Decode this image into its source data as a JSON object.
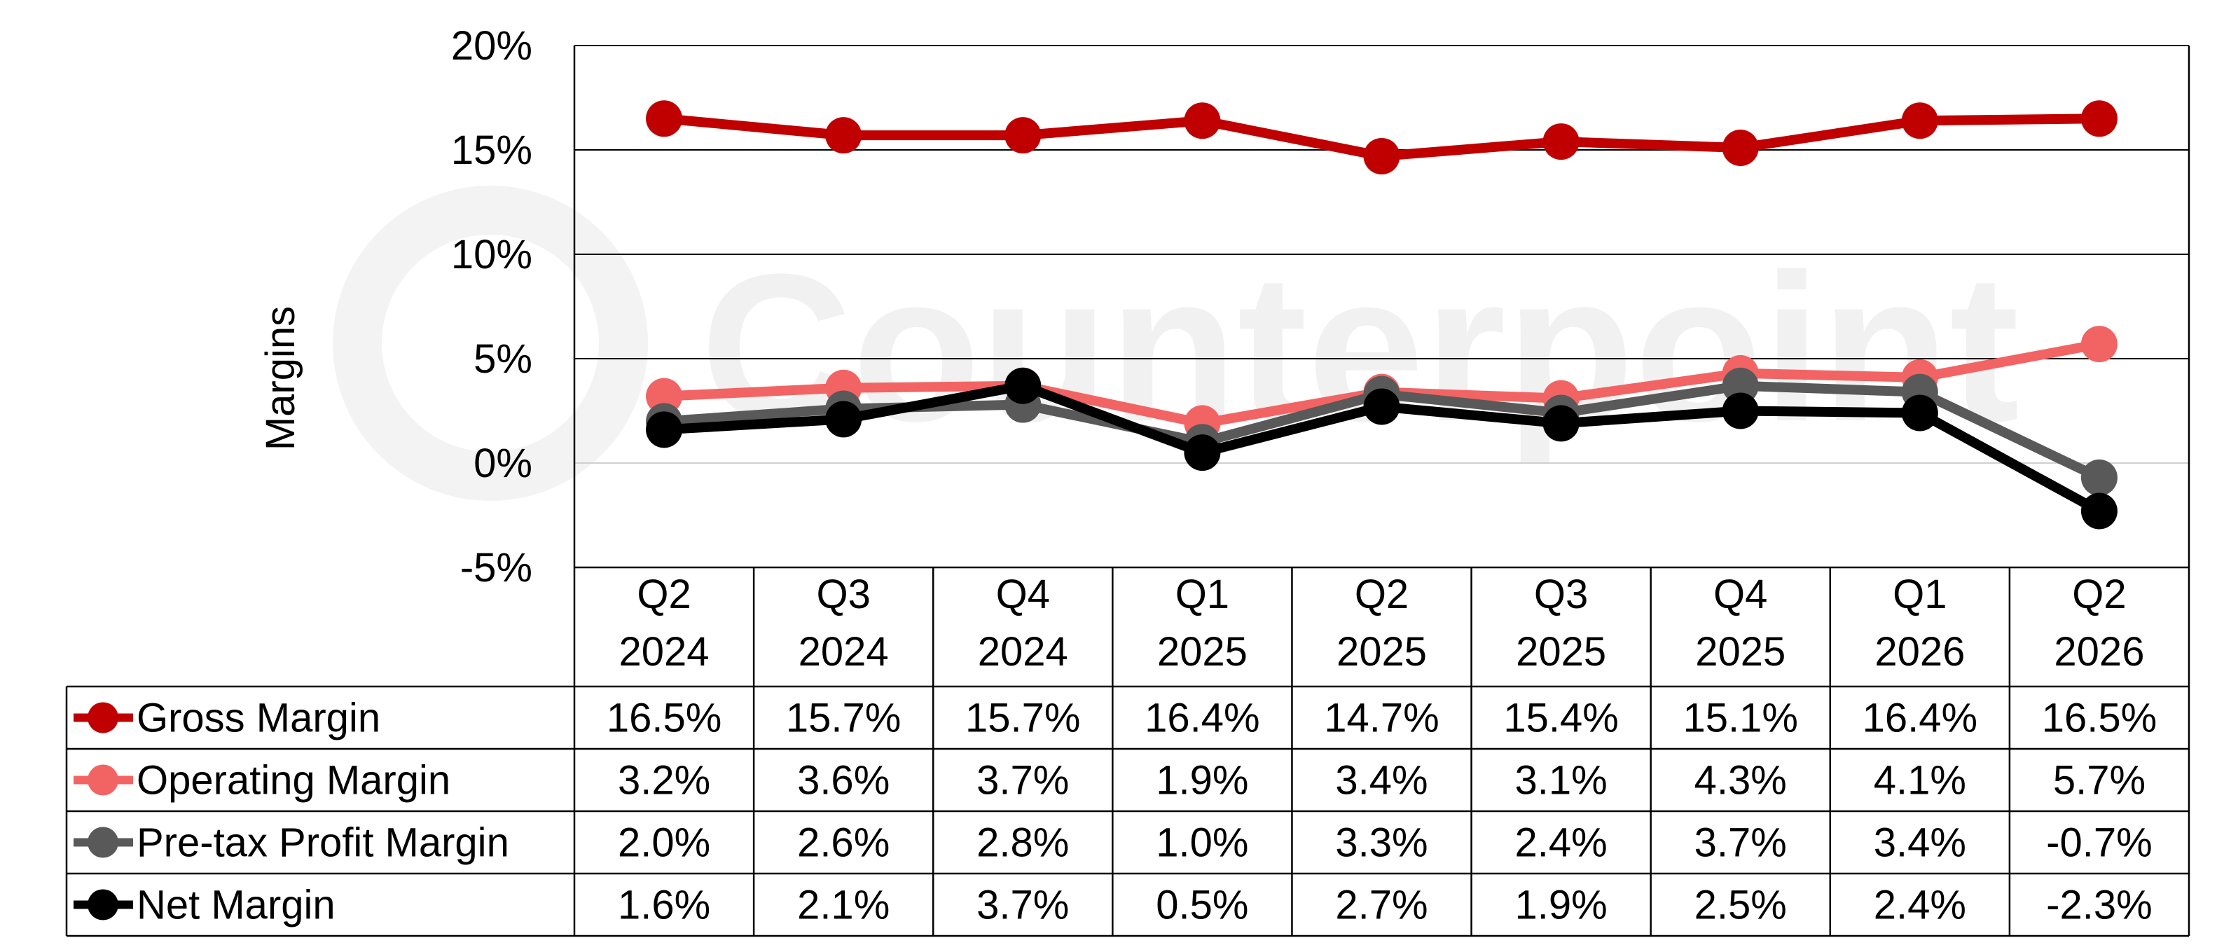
{
  "chart_data": {
    "type": "line",
    "ylabel": "Margins",
    "ylim": [
      -5,
      20
    ],
    "y_ticks": [
      "20%",
      "15%",
      "10%",
      "5%",
      "0%",
      "-5%"
    ],
    "y_tick_values": [
      20,
      15,
      10,
      5,
      0,
      -5
    ],
    "grid": true,
    "categories": [
      "Q2\n2024",
      "Q3\n2024",
      "Q4\n2024",
      "Q1\n2025",
      "Q2\n2025",
      "Q3\n2025",
      "Q4\n2025",
      "Q1\n2026",
      "Q2\n2026"
    ],
    "series": [
      {
        "name": "Gross Margin",
        "color": "#c00000",
        "values": [
          16.5,
          15.7,
          15.7,
          16.4,
          14.7,
          15.4,
          15.1,
          16.4,
          16.5
        ],
        "labels": [
          "16.5%",
          "15.7%",
          "15.7%",
          "16.4%",
          "14.7%",
          "15.4%",
          "15.1%",
          "16.4%",
          "16.5%"
        ]
      },
      {
        "name": "Operating Margin",
        "color": "#f26464",
        "values": [
          3.2,
          3.6,
          3.7,
          1.9,
          3.4,
          3.1,
          4.3,
          4.1,
          5.7
        ],
        "labels": [
          "3.2%",
          "3.6%",
          "3.7%",
          "1.9%",
          "3.4%",
          "3.1%",
          "4.3%",
          "4.1%",
          "5.7%"
        ]
      },
      {
        "name": "Pre-tax Profit Margin",
        "color": "#595959",
        "values": [
          2.0,
          2.6,
          2.8,
          1.0,
          3.3,
          2.4,
          3.7,
          3.4,
          -0.7
        ],
        "labels": [
          "2.0%",
          "2.6%",
          "2.8%",
          "1.0%",
          "3.3%",
          "2.4%",
          "3.7%",
          "3.4%",
          "-0.7%"
        ]
      },
      {
        "name": "Net Margin",
        "color": "#000000",
        "values": [
          1.6,
          2.1,
          3.7,
          0.5,
          2.7,
          1.9,
          2.5,
          2.4,
          -2.3
        ],
        "labels": [
          "1.6%",
          "2.1%",
          "3.7%",
          "0.5%",
          "2.7%",
          "1.9%",
          "2.5%",
          "2.4%",
          "-2.3%"
        ]
      }
    ]
  },
  "watermark": "Counterpoint"
}
